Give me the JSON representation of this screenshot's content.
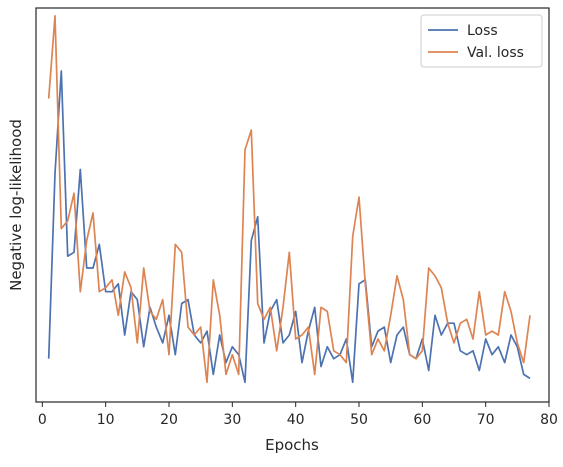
{
  "chart_data": {
    "type": "line",
    "title": "",
    "xlabel": "Epochs",
    "ylabel": "Negative log-likelihood",
    "xlim": [
      -1,
      80
    ],
    "ylim": [
      0,
      1
    ],
    "x_ticks": [
      0,
      10,
      20,
      30,
      40,
      50,
      60,
      70,
      80
    ],
    "y_ticks": [],
    "grid": false,
    "legend_position": "top-right",
    "x": [
      1,
      2,
      3,
      4,
      5,
      6,
      7,
      8,
      9,
      10,
      11,
      12,
      13,
      14,
      15,
      16,
      17,
      18,
      19,
      20,
      21,
      22,
      23,
      24,
      25,
      26,
      27,
      28,
      29,
      30,
      31,
      32,
      33,
      34,
      35,
      36,
      37,
      38,
      39,
      40,
      41,
      42,
      43,
      44,
      45,
      46,
      47,
      48,
      49,
      50,
      51,
      52,
      53,
      54,
      55,
      56,
      57,
      58,
      59,
      60,
      61,
      62,
      63,
      64,
      65,
      66,
      67,
      68,
      69,
      70,
      71,
      72,
      73,
      74,
      75,
      76,
      77
    ],
    "series": [
      {
        "name": "Loss",
        "color": "#4c72b0",
        "values": [
          0.11,
          0.58,
          0.84,
          0.37,
          0.38,
          0.59,
          0.34,
          0.34,
          0.4,
          0.28,
          0.28,
          0.3,
          0.17,
          0.28,
          0.26,
          0.14,
          0.24,
          0.19,
          0.15,
          0.22,
          0.12,
          0.25,
          0.26,
          0.17,
          0.15,
          0.18,
          0.07,
          0.17,
          0.1,
          0.14,
          0.12,
          0.05,
          0.41,
          0.47,
          0.15,
          0.23,
          0.26,
          0.15,
          0.17,
          0.23,
          0.1,
          0.18,
          0.24,
          0.09,
          0.14,
          0.11,
          0.12,
          0.16,
          0.05,
          0.3,
          0.31,
          0.14,
          0.18,
          0.19,
          0.1,
          0.17,
          0.19,
          0.12,
          0.11,
          0.16,
          0.08,
          0.22,
          0.17,
          0.2,
          0.2,
          0.13,
          0.12,
          0.13,
          0.08,
          0.16,
          0.12,
          0.14,
          0.1,
          0.17,
          0.14,
          0.07,
          0.06
        ]
      },
      {
        "name": "Val. loss",
        "color": "#dd8452",
        "values": [
          0.77,
          0.98,
          0.44,
          0.46,
          0.53,
          0.28,
          0.41,
          0.48,
          0.28,
          0.29,
          0.31,
          0.22,
          0.33,
          0.29,
          0.15,
          0.34,
          0.23,
          0.21,
          0.26,
          0.12,
          0.4,
          0.38,
          0.19,
          0.17,
          0.19,
          0.05,
          0.31,
          0.22,
          0.07,
          0.12,
          0.07,
          0.64,
          0.69,
          0.25,
          0.21,
          0.24,
          0.13,
          0.24,
          0.38,
          0.16,
          0.17,
          0.19,
          0.07,
          0.24,
          0.23,
          0.13,
          0.12,
          0.1,
          0.42,
          0.52,
          0.3,
          0.12,
          0.16,
          0.13,
          0.22,
          0.32,
          0.26,
          0.12,
          0.11,
          0.13,
          0.34,
          0.32,
          0.29,
          0.2,
          0.15,
          0.2,
          0.21,
          0.16,
          0.28,
          0.17,
          0.18,
          0.17,
          0.28,
          0.23,
          0.15,
          0.1,
          0.22
        ]
      }
    ]
  }
}
